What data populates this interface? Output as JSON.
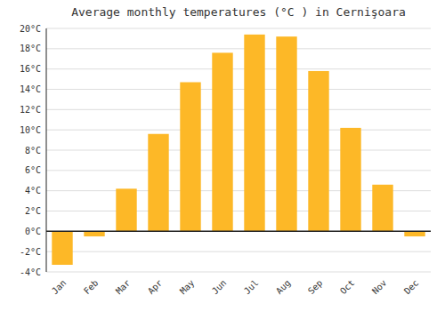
{
  "chart_data": {
    "type": "bar",
    "title": "Average monthly temperatures (°C ) in Cernişoara",
    "categories": [
      "Jan",
      "Feb",
      "Mar",
      "Apr",
      "May",
      "Jun",
      "Jul",
      "Aug",
      "Sep",
      "Oct",
      "Nov",
      "Dec"
    ],
    "values": [
      -3.3,
      -0.5,
      4.2,
      9.6,
      14.7,
      17.6,
      19.4,
      19.2,
      15.8,
      10.2,
      4.6,
      -0.5
    ],
    "color": "#FDB827",
    "ylim": [
      -4,
      20
    ],
    "yticks": [
      {
        "value": -4,
        "label": "-4°C"
      },
      {
        "value": -2,
        "label": "-2°C"
      },
      {
        "value": 0,
        "label": "0°C"
      },
      {
        "value": 2,
        "label": "2°C"
      },
      {
        "value": 4,
        "label": "4°C"
      },
      {
        "value": 6,
        "label": "6°C"
      },
      {
        "value": 8,
        "label": "8°C"
      },
      {
        "value": 10,
        "label": "10°C"
      },
      {
        "value": 12,
        "label": "12°C"
      },
      {
        "value": 14,
        "label": "14°C"
      },
      {
        "value": 16,
        "label": "16°C"
      },
      {
        "value": 18,
        "label": "18°C"
      },
      {
        "value": 20,
        "label": "20°C"
      }
    ],
    "grid": true
  }
}
